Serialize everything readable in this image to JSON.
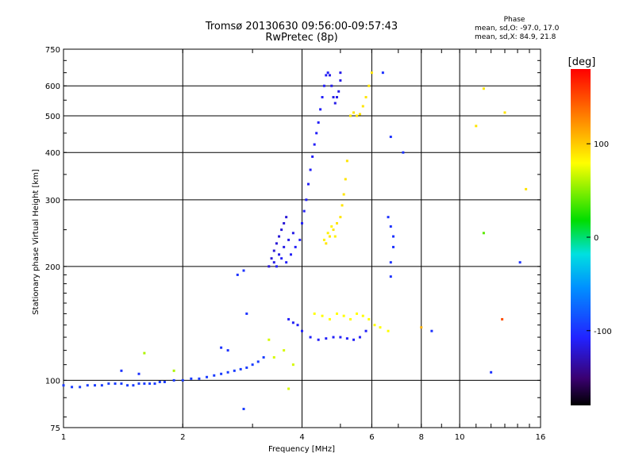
{
  "chart_data": {
    "type": "scatter",
    "title": "Tromsø 20130630 09:56:00-09:57:43",
    "subtitle": "RwPretec (8p)",
    "xlabel": "Frequency [MHz]",
    "ylabel": "Stationary phase Virtual Height [km]",
    "x_scale": "log",
    "y_scale": "log",
    "xlim": [
      1,
      16
    ],
    "ylim": [
      75,
      750
    ],
    "x_ticks": [
      1,
      2,
      4,
      6,
      8,
      10,
      16
    ],
    "y_ticks": [
      75,
      100,
      200,
      300,
      400,
      500,
      600,
      750
    ],
    "grid": true,
    "colorbar": {
      "label": "[deg]",
      "ticks": [
        100,
        0,
        -100
      ],
      "range": [
        -180,
        180
      ]
    },
    "stats": {
      "heading": "Phase",
      "line_o": "mean, sd,O:  -97.0,  17.0",
      "line_x": "mean, sd,X:   84.9,  21.8"
    },
    "series": [
      {
        "name": "O",
        "points": [
          [
            1.0,
            97,
            -95
          ],
          [
            1.05,
            96,
            -95
          ],
          [
            1.1,
            96,
            -95
          ],
          [
            1.15,
            97,
            -95
          ],
          [
            1.2,
            97,
            -95
          ],
          [
            1.25,
            97,
            -95
          ],
          [
            1.3,
            98,
            -95
          ],
          [
            1.35,
            98,
            -95
          ],
          [
            1.4,
            98,
            -95
          ],
          [
            1.45,
            97,
            -95
          ],
          [
            1.5,
            97,
            -95
          ],
          [
            1.55,
            98,
            -95
          ],
          [
            1.6,
            98,
            -95
          ],
          [
            1.65,
            98,
            -95
          ],
          [
            1.7,
            98,
            -95
          ],
          [
            1.75,
            99,
            -95
          ],
          [
            1.8,
            99,
            -95
          ],
          [
            1.9,
            100,
            -95
          ],
          [
            2.0,
            100,
            -95
          ],
          [
            2.1,
            101,
            -95
          ],
          [
            2.2,
            101,
            -95
          ],
          [
            2.3,
            102,
            -95
          ],
          [
            2.4,
            103,
            -95
          ],
          [
            2.5,
            104,
            -95
          ],
          [
            2.6,
            105,
            -95
          ],
          [
            2.7,
            106,
            -95
          ],
          [
            2.8,
            107,
            -95
          ],
          [
            2.9,
            108,
            -95
          ],
          [
            3.0,
            110,
            -95
          ],
          [
            3.1,
            112,
            -95
          ],
          [
            3.2,
            115,
            -95
          ],
          [
            2.75,
            190,
            -100
          ],
          [
            2.85,
            195,
            -100
          ],
          [
            2.9,
            150,
            -100
          ],
          [
            2.5,
            122,
            -100
          ],
          [
            2.6,
            120,
            -100
          ],
          [
            2.85,
            84,
            -95
          ],
          [
            1.4,
            106,
            -100
          ],
          [
            1.55,
            104,
            -100
          ],
          [
            3.3,
            200,
            -120
          ],
          [
            3.35,
            210,
            -120
          ],
          [
            3.4,
            220,
            -120
          ],
          [
            3.45,
            230,
            -120
          ],
          [
            3.5,
            240,
            -120
          ],
          [
            3.55,
            250,
            -120
          ],
          [
            3.6,
            260,
            -120
          ],
          [
            3.65,
            270,
            -120
          ],
          [
            3.4,
            205,
            -115
          ],
          [
            3.5,
            215,
            -115
          ],
          [
            3.6,
            225,
            -115
          ],
          [
            3.7,
            235,
            -115
          ],
          [
            3.8,
            245,
            -115
          ],
          [
            3.45,
            200,
            -110
          ],
          [
            3.55,
            210,
            -110
          ],
          [
            3.65,
            205,
            -110
          ],
          [
            3.75,
            215,
            -110
          ],
          [
            3.85,
            225,
            -110
          ],
          [
            3.95,
            235,
            -110
          ],
          [
            4.0,
            260,
            -110
          ],
          [
            4.05,
            280,
            -110
          ],
          [
            4.1,
            300,
            -110
          ],
          [
            4.15,
            330,
            -110
          ],
          [
            4.2,
            360,
            -110
          ],
          [
            4.25,
            390,
            -110
          ],
          [
            4.3,
            420,
            -110
          ],
          [
            4.35,
            450,
            -110
          ],
          [
            4.4,
            480,
            -110
          ],
          [
            4.45,
            520,
            -110
          ],
          [
            4.5,
            560,
            -110
          ],
          [
            4.55,
            600,
            -110
          ],
          [
            4.6,
            640,
            -110
          ],
          [
            4.65,
            650,
            -110
          ],
          [
            4.7,
            640,
            -115
          ],
          [
            4.75,
            600,
            -115
          ],
          [
            4.8,
            560,
            -115
          ],
          [
            4.85,
            540,
            -115
          ],
          [
            4.9,
            560,
            -115
          ],
          [
            4.95,
            580,
            -115
          ],
          [
            5.0,
            620,
            -115
          ],
          [
            5.0,
            650,
            -115
          ],
          [
            3.7,
            145,
            -110
          ],
          [
            3.8,
            142,
            -110
          ],
          [
            3.9,
            140,
            -110
          ],
          [
            4.0,
            135,
            -110
          ],
          [
            4.2,
            130,
            -110
          ],
          [
            4.4,
            128,
            -110
          ],
          [
            4.6,
            129,
            -110
          ],
          [
            4.8,
            130,
            -110
          ],
          [
            5.0,
            130,
            -110
          ],
          [
            5.2,
            129,
            -110
          ],
          [
            5.4,
            128,
            -110
          ],
          [
            5.6,
            130,
            -110
          ],
          [
            5.8,
            135,
            -110
          ],
          [
            6.6,
            270,
            -100
          ],
          [
            6.7,
            255,
            -100
          ],
          [
            6.8,
            240,
            -100
          ],
          [
            6.8,
            225,
            -100
          ],
          [
            6.7,
            205,
            -100
          ],
          [
            6.7,
            188,
            -100
          ],
          [
            7.2,
            400,
            -100
          ],
          [
            6.4,
            650,
            -100
          ],
          [
            6.7,
            440,
            -100
          ],
          [
            8.5,
            135,
            -100
          ],
          [
            12.0,
            105,
            -100
          ],
          [
            14.2,
            205,
            -100
          ]
        ]
      },
      {
        "name": "X",
        "points": [
          [
            4.6,
            230,
            90
          ],
          [
            4.7,
            240,
            90
          ],
          [
            4.8,
            250,
            90
          ],
          [
            4.9,
            260,
            90
          ],
          [
            5.0,
            270,
            90
          ],
          [
            5.05,
            290,
            90
          ],
          [
            5.1,
            310,
            90
          ],
          [
            5.15,
            340,
            90
          ],
          [
            5.2,
            380,
            90
          ],
          [
            4.55,
            235,
            85
          ],
          [
            4.65,
            245,
            85
          ],
          [
            4.75,
            255,
            85
          ],
          [
            4.85,
            240,
            85
          ],
          [
            5.3,
            500,
            90
          ],
          [
            5.4,
            510,
            90
          ],
          [
            5.5,
            500,
            90
          ],
          [
            5.6,
            505,
            90
          ],
          [
            5.7,
            530,
            90
          ],
          [
            5.8,
            560,
            90
          ],
          [
            5.9,
            600,
            90
          ],
          [
            6.0,
            650,
            90
          ],
          [
            4.3,
            150,
            80
          ],
          [
            4.5,
            148,
            80
          ],
          [
            4.7,
            145,
            80
          ],
          [
            4.9,
            150,
            80
          ],
          [
            5.1,
            148,
            80
          ],
          [
            5.3,
            145,
            80
          ],
          [
            5.5,
            150,
            80
          ],
          [
            5.7,
            148,
            80
          ],
          [
            5.9,
            145,
            80
          ],
          [
            6.1,
            140,
            80
          ],
          [
            6.3,
            138,
            80
          ],
          [
            6.6,
            135,
            80
          ],
          [
            3.3,
            128,
            70
          ],
          [
            3.4,
            115,
            70
          ],
          [
            3.6,
            120,
            70
          ],
          [
            3.7,
            95,
            70
          ],
          [
            3.8,
            110,
            70
          ],
          [
            1.6,
            118,
            60
          ],
          [
            1.9,
            106,
            60
          ],
          [
            11.5,
            590,
            90
          ],
          [
            11.0,
            470,
            90
          ],
          [
            13.0,
            510,
            90
          ],
          [
            11.5,
            245,
            40
          ],
          [
            14.7,
            320,
            90
          ],
          [
            12.8,
            145,
            150
          ],
          [
            8.0,
            138,
            110
          ]
        ]
      }
    ]
  }
}
